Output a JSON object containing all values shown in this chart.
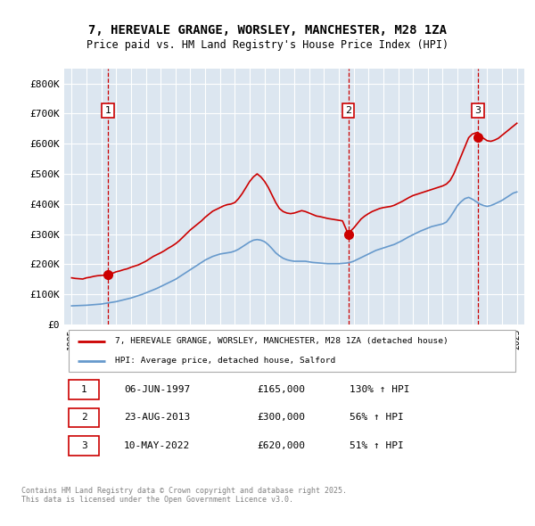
{
  "title": "7, HEREVALE GRANGE, WORSLEY, MANCHESTER, M28 1ZA",
  "subtitle": "Price paid vs. HM Land Registry's House Price Index (HPI)",
  "plot_bg_color": "#dce6f0",
  "ylim": [
    0,
    850000
  ],
  "yticks": [
    0,
    100000,
    200000,
    300000,
    400000,
    500000,
    600000,
    700000,
    800000
  ],
  "ytick_labels": [
    "£0",
    "£100K",
    "£200K",
    "£300K",
    "£400K",
    "£500K",
    "£600K",
    "£700K",
    "£800K"
  ],
  "xlim_start": 1994.5,
  "xlim_end": 2025.5,
  "sale_dates": [
    1997.44,
    2013.64,
    2022.36
  ],
  "sale_prices": [
    165000,
    300000,
    620000
  ],
  "sale_labels": [
    "1",
    "2",
    "3"
  ],
  "red_line_color": "#cc0000",
  "blue_line_color": "#6699cc",
  "sale_dot_color": "#cc0000",
  "vline_color": "#cc0000",
  "legend_red_label": "7, HEREVALE GRANGE, WORSLEY, MANCHESTER, M28 1ZA (detached house)",
  "legend_blue_label": "HPI: Average price, detached house, Salford",
  "table_rows": [
    {
      "num": "1",
      "date": "06-JUN-1997",
      "price": "£165,000",
      "hpi": "130% ↑ HPI"
    },
    {
      "num": "2",
      "date": "23-AUG-2013",
      "price": "£300,000",
      "hpi": "56% ↑ HPI"
    },
    {
      "num": "3",
      "date": "10-MAY-2022",
      "price": "£620,000",
      "hpi": "51% ↑ HPI"
    }
  ],
  "footnote": "Contains HM Land Registry data © Crown copyright and database right 2025.\nThis data is licensed under the Open Government Licence v3.0.",
  "red_line_x": [
    1995.0,
    1995.25,
    1995.5,
    1995.75,
    1996.0,
    1996.25,
    1996.5,
    1996.75,
    1997.0,
    1997.25,
    1997.44,
    1997.5,
    1997.75,
    1998.0,
    1998.25,
    1998.5,
    1998.75,
    1999.0,
    1999.25,
    1999.5,
    1999.75,
    2000.0,
    2000.25,
    2000.5,
    2000.75,
    2001.0,
    2001.25,
    2001.5,
    2001.75,
    2002.0,
    2002.25,
    2002.5,
    2002.75,
    2003.0,
    2003.25,
    2003.5,
    2003.75,
    2004.0,
    2004.25,
    2004.5,
    2004.75,
    2005.0,
    2005.25,
    2005.5,
    2005.75,
    2006.0,
    2006.25,
    2006.5,
    2006.75,
    2007.0,
    2007.25,
    2007.5,
    2007.75,
    2008.0,
    2008.25,
    2008.5,
    2008.75,
    2009.0,
    2009.25,
    2009.5,
    2009.75,
    2010.0,
    2010.25,
    2010.5,
    2010.75,
    2011.0,
    2011.25,
    2011.5,
    2011.75,
    2012.0,
    2012.25,
    2012.5,
    2012.75,
    2013.0,
    2013.25,
    2013.64,
    2013.75,
    2014.0,
    2014.25,
    2014.5,
    2014.75,
    2015.0,
    2015.25,
    2015.5,
    2015.75,
    2016.0,
    2016.25,
    2016.5,
    2016.75,
    2017.0,
    2017.25,
    2017.5,
    2017.75,
    2018.0,
    2018.25,
    2018.5,
    2018.75,
    2019.0,
    2019.25,
    2019.5,
    2019.75,
    2020.0,
    2020.25,
    2020.5,
    2020.75,
    2021.0,
    2021.25,
    2021.5,
    2021.75,
    2022.0,
    2022.36,
    2022.5,
    2022.75,
    2023.0,
    2023.25,
    2023.5,
    2023.75,
    2024.0,
    2024.25,
    2024.5,
    2024.75,
    2025.0
  ],
  "red_line_y": [
    155000,
    153000,
    152000,
    151000,
    155000,
    157000,
    160000,
    162000,
    163000,
    164000,
    165000,
    166000,
    170000,
    175000,
    178000,
    182000,
    185000,
    190000,
    194000,
    198000,
    204000,
    210000,
    218000,
    226000,
    232000,
    238000,
    245000,
    253000,
    260000,
    268000,
    278000,
    290000,
    302000,
    314000,
    324000,
    334000,
    344000,
    356000,
    366000,
    376000,
    382000,
    388000,
    394000,
    398000,
    400000,
    405000,
    418000,
    435000,
    455000,
    475000,
    490000,
    500000,
    490000,
    475000,
    455000,
    430000,
    405000,
    385000,
    375000,
    370000,
    368000,
    370000,
    374000,
    378000,
    375000,
    370000,
    365000,
    360000,
    358000,
    355000,
    352000,
    350000,
    348000,
    346000,
    344000,
    300000,
    308000,
    320000,
    335000,
    350000,
    360000,
    368000,
    375000,
    380000,
    385000,
    388000,
    390000,
    392000,
    396000,
    402000,
    408000,
    415000,
    422000,
    428000,
    432000,
    436000,
    440000,
    444000,
    448000,
    452000,
    456000,
    460000,
    466000,
    478000,
    500000,
    530000,
    560000,
    590000,
    620000,
    632000,
    638000,
    630000,
    618000,
    610000,
    608000,
    612000,
    618000,
    628000,
    638000,
    648000,
    658000,
    668000
  ],
  "blue_line_x": [
    1995.0,
    1995.25,
    1995.5,
    1995.75,
    1996.0,
    1996.25,
    1996.5,
    1996.75,
    1997.0,
    1997.25,
    1997.5,
    1997.75,
    1998.0,
    1998.25,
    1998.5,
    1998.75,
    1999.0,
    1999.25,
    1999.5,
    1999.75,
    2000.0,
    2000.25,
    2000.5,
    2000.75,
    2001.0,
    2001.25,
    2001.5,
    2001.75,
    2002.0,
    2002.25,
    2002.5,
    2002.75,
    2003.0,
    2003.25,
    2003.5,
    2003.75,
    2004.0,
    2004.25,
    2004.5,
    2004.75,
    2005.0,
    2005.25,
    2005.5,
    2005.75,
    2006.0,
    2006.25,
    2006.5,
    2006.75,
    2007.0,
    2007.25,
    2007.5,
    2007.75,
    2008.0,
    2008.25,
    2008.5,
    2008.75,
    2009.0,
    2009.25,
    2009.5,
    2009.75,
    2010.0,
    2010.25,
    2010.5,
    2010.75,
    2011.0,
    2011.25,
    2011.5,
    2011.75,
    2012.0,
    2012.25,
    2012.5,
    2012.75,
    2013.0,
    2013.25,
    2013.5,
    2013.75,
    2014.0,
    2014.25,
    2014.5,
    2014.75,
    2015.0,
    2015.25,
    2015.5,
    2015.75,
    2016.0,
    2016.25,
    2016.5,
    2016.75,
    2017.0,
    2017.25,
    2017.5,
    2017.75,
    2018.0,
    2018.25,
    2018.5,
    2018.75,
    2019.0,
    2019.25,
    2019.5,
    2019.75,
    2020.0,
    2020.25,
    2020.5,
    2020.75,
    2021.0,
    2021.25,
    2021.5,
    2021.75,
    2022.0,
    2022.25,
    2022.5,
    2022.75,
    2023.0,
    2023.25,
    2023.5,
    2023.75,
    2024.0,
    2024.25,
    2024.5,
    2024.75,
    2025.0
  ],
  "blue_line_y": [
    62000,
    62500,
    63000,
    63500,
    64000,
    65000,
    66000,
    67000,
    68000,
    70000,
    72000,
    74000,
    76000,
    79000,
    82000,
    85000,
    88000,
    92000,
    96000,
    100000,
    105000,
    110000,
    115000,
    120000,
    126000,
    132000,
    138000,
    144000,
    150000,
    158000,
    166000,
    174000,
    182000,
    190000,
    198000,
    206000,
    214000,
    220000,
    226000,
    230000,
    234000,
    236000,
    238000,
    240000,
    244000,
    250000,
    258000,
    266000,
    274000,
    280000,
    282000,
    280000,
    275000,
    265000,
    252000,
    238000,
    228000,
    220000,
    215000,
    212000,
    210000,
    210000,
    210000,
    210000,
    208000,
    206000,
    205000,
    204000,
    203000,
    202000,
    202000,
    202000,
    202000,
    203000,
    204000,
    206000,
    210000,
    216000,
    222000,
    228000,
    234000,
    240000,
    246000,
    250000,
    254000,
    258000,
    262000,
    266000,
    272000,
    278000,
    285000,
    292000,
    298000,
    304000,
    310000,
    315000,
    320000,
    325000,
    328000,
    331000,
    334000,
    340000,
    356000,
    375000,
    395000,
    408000,
    418000,
    422000,
    416000,
    408000,
    400000,
    395000,
    392000,
    395000,
    400000,
    406000,
    412000,
    420000,
    428000,
    436000,
    440000
  ]
}
